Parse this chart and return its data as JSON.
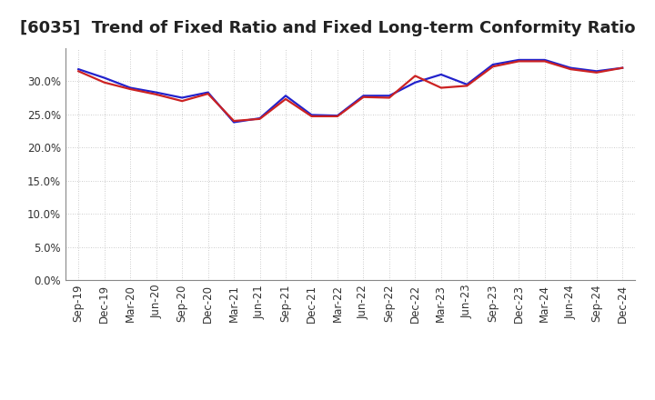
{
  "title": "[6035]  Trend of Fixed Ratio and Fixed Long-term Conformity Ratio",
  "x_labels": [
    "Sep-19",
    "Dec-19",
    "Mar-20",
    "Jun-20",
    "Sep-20",
    "Dec-20",
    "Mar-21",
    "Jun-21",
    "Sep-21",
    "Dec-21",
    "Mar-22",
    "Jun-22",
    "Sep-22",
    "Dec-22",
    "Mar-23",
    "Jun-23",
    "Sep-23",
    "Dec-23",
    "Mar-24",
    "Jun-24",
    "Sep-24",
    "Dec-24"
  ],
  "fixed_ratio": [
    0.318,
    0.305,
    0.29,
    0.283,
    0.275,
    0.283,
    0.238,
    0.244,
    0.278,
    0.249,
    0.248,
    0.278,
    0.278,
    0.298,
    0.31,
    0.295,
    0.325,
    0.332,
    0.332,
    0.32,
    0.315,
    0.32
  ],
  "fixed_lt_ratio": [
    0.315,
    0.298,
    0.288,
    0.28,
    0.27,
    0.281,
    0.24,
    0.243,
    0.273,
    0.247,
    0.247,
    0.276,
    0.275,
    0.308,
    0.29,
    0.293,
    0.322,
    0.33,
    0.33,
    0.318,
    0.313,
    0.32
  ],
  "fixed_ratio_color": "#2222cc",
  "fixed_lt_ratio_color": "#cc2222",
  "background_color": "#ffffff",
  "grid_color": "#bbbbbb",
  "ylim": [
    0.0,
    0.35
  ],
  "yticks": [
    0.0,
    0.05,
    0.1,
    0.15,
    0.2,
    0.25,
    0.3
  ],
  "title_fontsize": 13,
  "tick_fontsize": 8.5,
  "legend_fontsize": 10
}
